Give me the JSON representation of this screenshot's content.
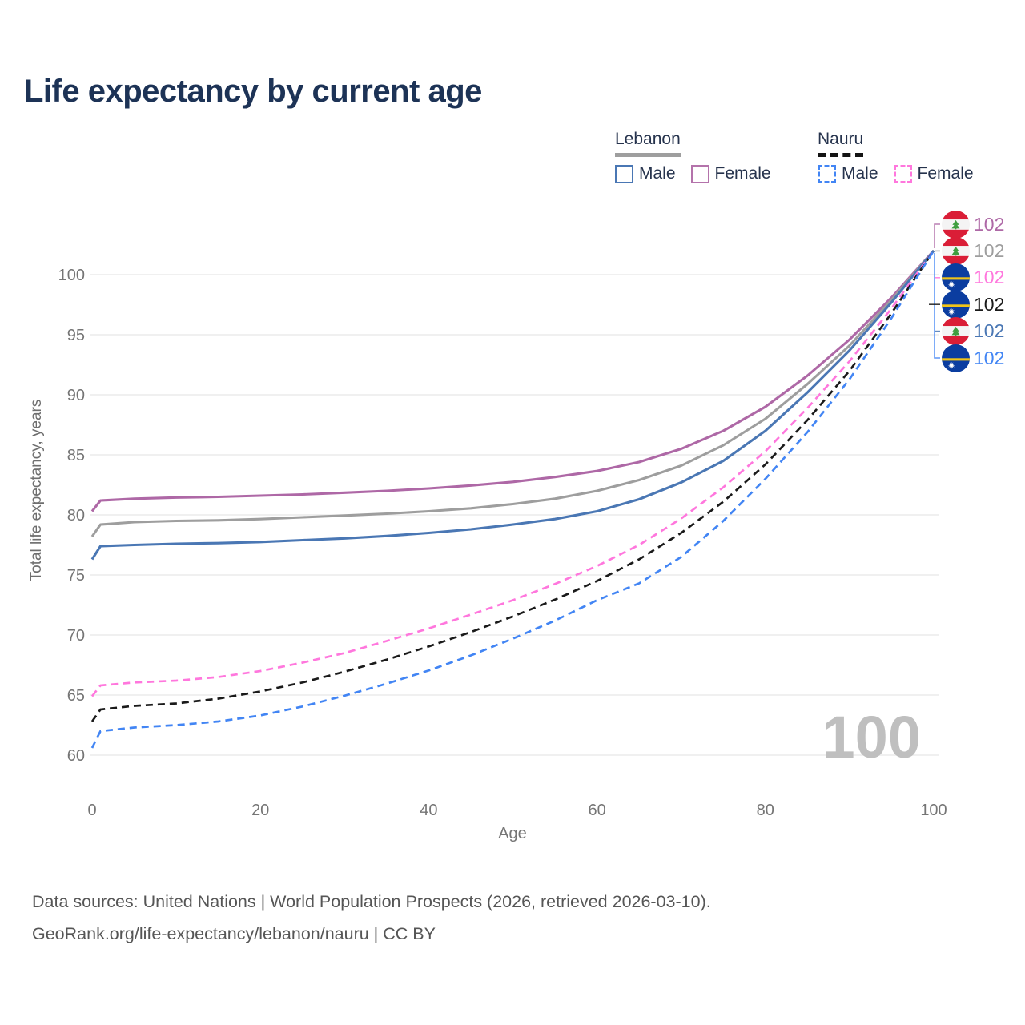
{
  "title": "Life expectancy by current age",
  "legend": {
    "groups": [
      {
        "name": "Lebanon",
        "line_style": "solid",
        "underline_color": "#9e9e9e",
        "items": [
          {
            "label": "Male",
            "color": "#4a77b4",
            "dashed": false
          },
          {
            "label": "Female",
            "color": "#b473ab",
            "dashed": false
          }
        ]
      },
      {
        "name": "Nauru",
        "line_style": "dashed",
        "underline_color": "#141414",
        "items": [
          {
            "label": "Male",
            "color": "#4285f4",
            "dashed": true
          },
          {
            "label": "Female",
            "color": "#ff77dd",
            "dashed": true
          }
        ]
      }
    ]
  },
  "chart_data": {
    "type": "line",
    "title": "Life expectancy by current age",
    "xlabel": "Age",
    "ylabel": "Total life expectancy, years",
    "x_ticks": [
      0,
      20,
      40,
      60,
      80,
      100
    ],
    "y_ticks": [
      60,
      65,
      70,
      75,
      80,
      85,
      90,
      95,
      100
    ],
    "xlim": [
      0,
      100
    ],
    "ylim": [
      59.5,
      103
    ],
    "grid": true,
    "legend_position": "top-right",
    "watermark": "100",
    "x": [
      0,
      1,
      5,
      10,
      15,
      20,
      25,
      30,
      35,
      40,
      45,
      50,
      55,
      60,
      65,
      70,
      75,
      80,
      85,
      90,
      95,
      100
    ],
    "series": [
      {
        "name": "Lebanon Female",
        "country": "Lebanon",
        "sex": "Female",
        "color": "#ae68a6",
        "dashed": false,
        "values": [
          80.3,
          81.2,
          81.35,
          81.45,
          81.5,
          81.6,
          81.7,
          81.85,
          82.0,
          82.2,
          82.45,
          82.75,
          83.15,
          83.65,
          84.4,
          85.5,
          87.0,
          89.0,
          91.6,
          94.6,
          98.1,
          102
        ]
      },
      {
        "name": "Lebanon Both sexes",
        "country": "Lebanon",
        "sex": "Both",
        "color": "#9e9e9e",
        "dashed": false,
        "values": [
          78.2,
          79.2,
          79.4,
          79.5,
          79.55,
          79.65,
          79.8,
          79.95,
          80.1,
          80.3,
          80.55,
          80.9,
          81.35,
          82.0,
          82.9,
          84.1,
          85.8,
          88.0,
          90.9,
          94.1,
          97.9,
          102
        ]
      },
      {
        "name": "Lebanon Male",
        "country": "Lebanon",
        "sex": "Male",
        "color": "#4a77b4",
        "dashed": false,
        "values": [
          76.3,
          77.4,
          77.5,
          77.6,
          77.65,
          77.75,
          77.9,
          78.05,
          78.25,
          78.5,
          78.8,
          79.2,
          79.65,
          80.3,
          81.3,
          82.7,
          84.5,
          87.0,
          90.2,
          93.7,
          97.7,
          102
        ]
      },
      {
        "name": "Nauru Female",
        "country": "Nauru",
        "sex": "Female",
        "color": "#ff77dd",
        "dashed": true,
        "values": [
          64.9,
          65.8,
          66.05,
          66.2,
          66.5,
          67.0,
          67.7,
          68.5,
          69.5,
          70.55,
          71.7,
          72.9,
          74.25,
          75.75,
          77.5,
          79.7,
          82.3,
          85.3,
          88.9,
          92.8,
          97.2,
          102
        ]
      },
      {
        "name": "Nauru Both sexes",
        "country": "Nauru",
        "sex": "Both",
        "color": "#1a1a1a",
        "dashed": true,
        "values": [
          62.8,
          63.8,
          64.1,
          64.3,
          64.7,
          65.3,
          66.05,
          66.95,
          67.95,
          69.05,
          70.25,
          71.55,
          72.95,
          74.5,
          76.3,
          78.5,
          81.1,
          84.2,
          87.9,
          92.0,
          96.8,
          102
        ]
      },
      {
        "name": "Nauru Male",
        "country": "Nauru",
        "sex": "Male",
        "color": "#4285f4",
        "dashed": true,
        "values": [
          60.6,
          62.0,
          62.3,
          62.5,
          62.8,
          63.3,
          64.05,
          64.95,
          65.95,
          67.05,
          68.3,
          69.7,
          71.2,
          72.9,
          74.3,
          76.5,
          79.5,
          83.0,
          86.9,
          91.3,
          96.4,
          102
        ]
      }
    ],
    "end_labels": [
      {
        "value": "102",
        "flag": "lebanon",
        "color": "#ae68a6",
        "series": "Lebanon Female"
      },
      {
        "value": "102",
        "flag": "lebanon",
        "color": "#9e9e9e",
        "series": "Lebanon Both sexes"
      },
      {
        "value": "102",
        "flag": "nauru",
        "color": "#ff77dd",
        "series": "Nauru Female"
      },
      {
        "value": "102",
        "flag": "nauru",
        "color": "#1a1a1a",
        "series": "Nauru Both sexes"
      },
      {
        "value": "102",
        "flag": "lebanon",
        "color": "#4a77b4",
        "series": "Lebanon Male"
      },
      {
        "value": "102",
        "flag": "nauru",
        "color": "#4285f4",
        "series": "Nauru Male"
      }
    ]
  },
  "colors": {
    "title": "#1d3356",
    "axis_text": "#757575",
    "gridline": "#e8e8e8",
    "watermark": "#bfbfbf",
    "lebanon_flag_red": "#da1e37",
    "lebanon_flag_green": "#3f9e3f",
    "nauru_flag_blue": "#0b3da0",
    "nauru_flag_yellow": "#f0c419"
  },
  "footer": {
    "line1": "Data sources: United Nations | World Population Prospects (2026, retrieved 2026-03-10).",
    "line2": "GeoRank.org/life-expectancy/lebanon/nauru | CC BY"
  }
}
